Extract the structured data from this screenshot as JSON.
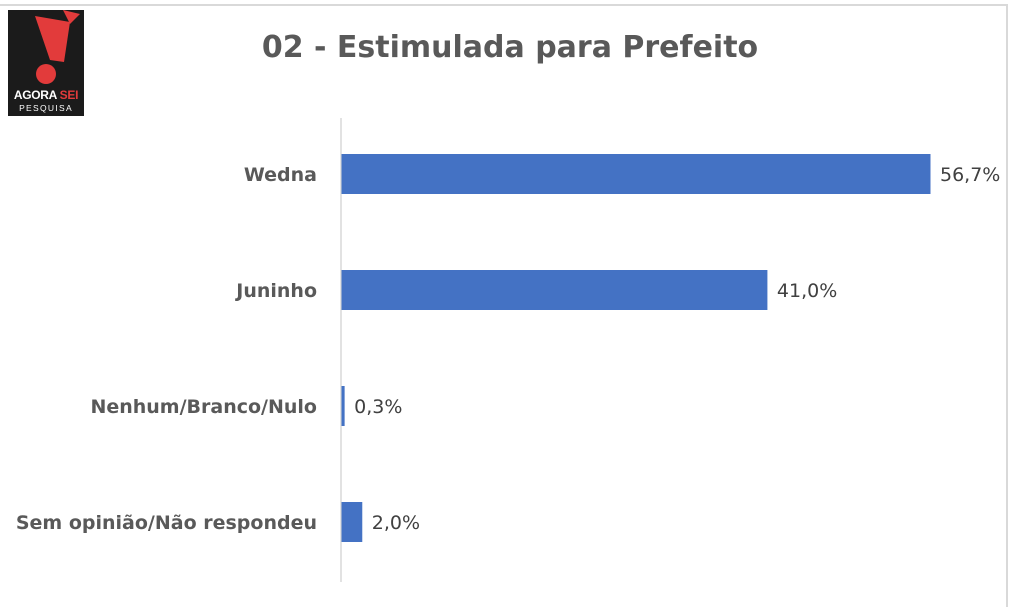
{
  "logo": {
    "brand_left": "AGORA",
    "brand_right": "SEI",
    "brand_sub": "PESQUISA",
    "red": "#e23b3b"
  },
  "chart_data": {
    "type": "bar",
    "orientation": "horizontal",
    "title": "02 - Estimulada para Prefeito",
    "categories": [
      "Wedna",
      "Juninho",
      "Nenhum/Branco/Nulo",
      "Sem opinião/Não respondeu"
    ],
    "values": [
      56.7,
      41.0,
      0.3,
      2.0
    ],
    "value_labels": [
      "56,7%",
      "41,0%",
      "0,3%",
      "2,0%"
    ],
    "xlim": [
      0,
      56.7
    ],
    "bar_color": "#4472c4",
    "grid": false,
    "legend": "none"
  }
}
